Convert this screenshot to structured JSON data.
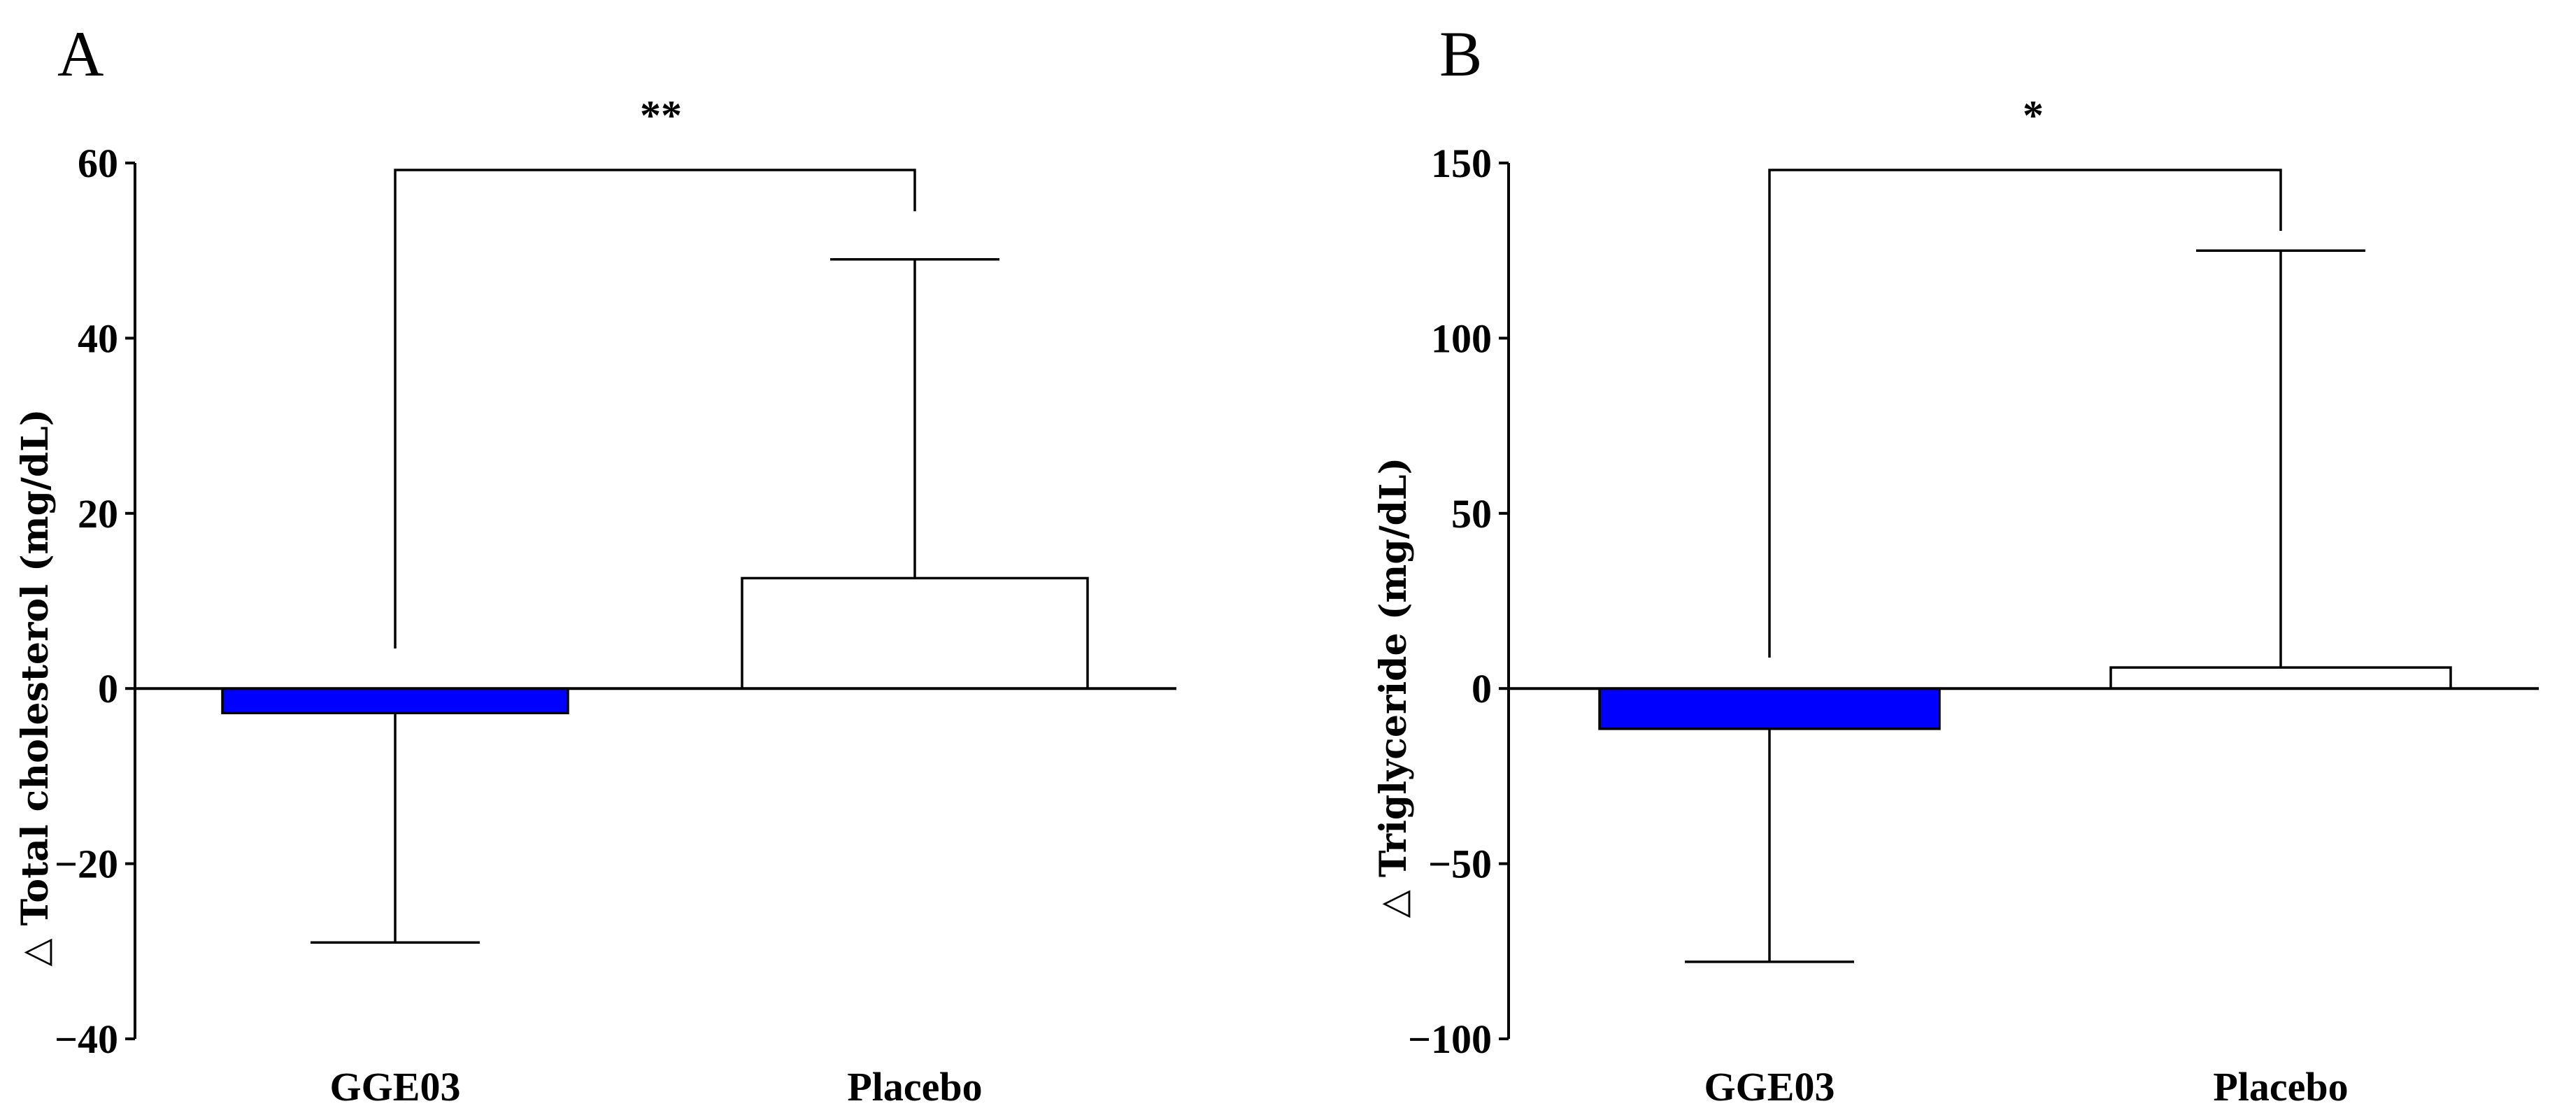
{
  "chart_data": [
    {
      "type": "bar",
      "panel_label": "A",
      "ylabel": "△ Total cholesterol (mg/dL)",
      "ylim": [
        -40,
        60
      ],
      "yticks": [
        60,
        40,
        20,
        0,
        -20,
        -40
      ],
      "ytick_labels": [
        "60",
        "40",
        "20",
        "0",
        "−20",
        "−40"
      ],
      "categories": [
        "GGE03",
        "Placebo"
      ],
      "values": [
        -2.8,
        12.6
      ],
      "error": [
        26.2,
        36.4
      ],
      "bar_colors": [
        "#0000ff",
        "#ffffff"
      ],
      "significance": "**"
    },
    {
      "type": "bar",
      "panel_label": "B",
      "ylabel": "△ Triglyceride (mg/dL)",
      "ylim": [
        -100,
        150
      ],
      "yticks": [
        150,
        100,
        50,
        0,
        -50,
        -100
      ],
      "ytick_labels": [
        "150",
        "100",
        "50",
        "0",
        "−50",
        "−100"
      ],
      "categories": [
        "GGE03",
        "Placebo"
      ],
      "values": [
        -11.5,
        6.0
      ],
      "error": [
        66.5,
        119.0
      ],
      "bar_colors": [
        "#0000ff",
        "#ffffff"
      ],
      "significance": "*"
    }
  ]
}
